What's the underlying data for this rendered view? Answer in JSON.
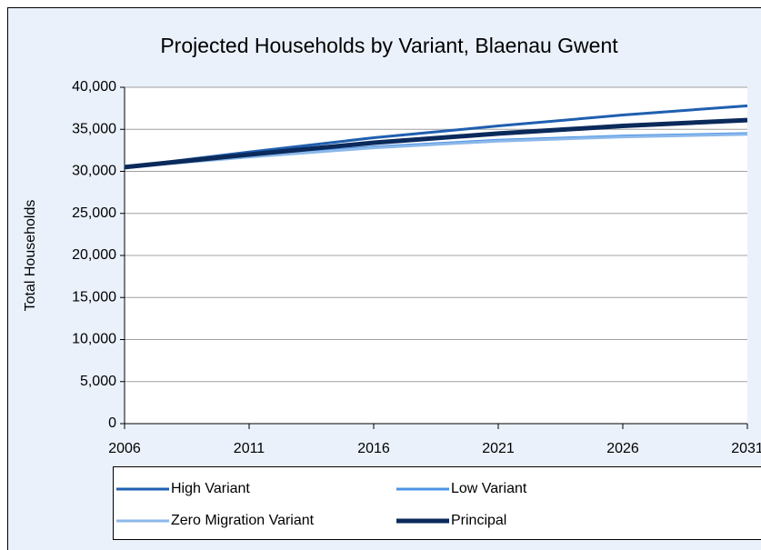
{
  "chart_data": {
    "type": "line",
    "title": "Projected Households by Variant, Blaenau Gwent",
    "y_label": "Total Households",
    "x": [
      2006,
      2011,
      2016,
      2021,
      2026,
      2031
    ],
    "series": [
      {
        "name": "High Variant",
        "color": "#1f5fb0",
        "width": 3,
        "values": [
          30500,
          32300,
          34000,
          35400,
          36700,
          37800
        ]
      },
      {
        "name": "Low Variant",
        "color": "#4d94e6",
        "width": 3,
        "values": [
          30500,
          31800,
          32900,
          33700,
          34200,
          34500
        ]
      },
      {
        "name": "Zero Migration Variant",
        "color": "#8cb8ea",
        "width": 3,
        "values": [
          30500,
          31700,
          32800,
          33600,
          34100,
          34400
        ]
      },
      {
        "name": "Principal",
        "color": "#0b2a5c",
        "width": 5,
        "values": [
          30500,
          32000,
          33400,
          34500,
          35400,
          36100
        ]
      }
    ],
    "xlim": [
      2006,
      2031
    ],
    "xticks": [
      2006,
      2011,
      2016,
      2021,
      2026,
      2031
    ],
    "ylim": [
      0,
      40000
    ],
    "yticks": [
      {
        "value": 0,
        "label": "0"
      },
      {
        "value": 5000,
        "label": "5,000"
      },
      {
        "value": 10000,
        "label": "10,000"
      },
      {
        "value": 15000,
        "label": "15,000"
      },
      {
        "value": 20000,
        "label": "20,000"
      },
      {
        "value": 25000,
        "label": "25,000"
      },
      {
        "value": 30000,
        "label": "30,000"
      },
      {
        "value": 35000,
        "label": "35,000"
      },
      {
        "value": 40000,
        "label": "40,000"
      }
    ],
    "grid": true,
    "legend": "bottom"
  }
}
